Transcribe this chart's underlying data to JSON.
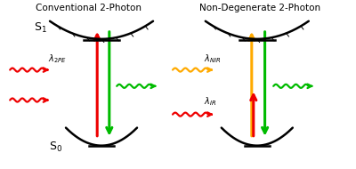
{
  "title_left": "Conventional 2-Photon",
  "title_right": "Non-Degenerate 2-Photon",
  "bg_color": "#ffffff",
  "label_s0_left": "S$_0$",
  "label_s1_left": "S$_1$",
  "label_lambda_2pe": "$\\lambda_{2PE}$",
  "label_lambda_nir": "$\\lambda_{NIR}$",
  "label_lambda_ir": "$\\lambda_{IR}$",
  "colors": {
    "red": "#ee0000",
    "green": "#00bb00",
    "orange": "#ffaa00",
    "black": "#000000"
  },
  "figsize": [
    4.0,
    1.9
  ],
  "dpi": 100
}
